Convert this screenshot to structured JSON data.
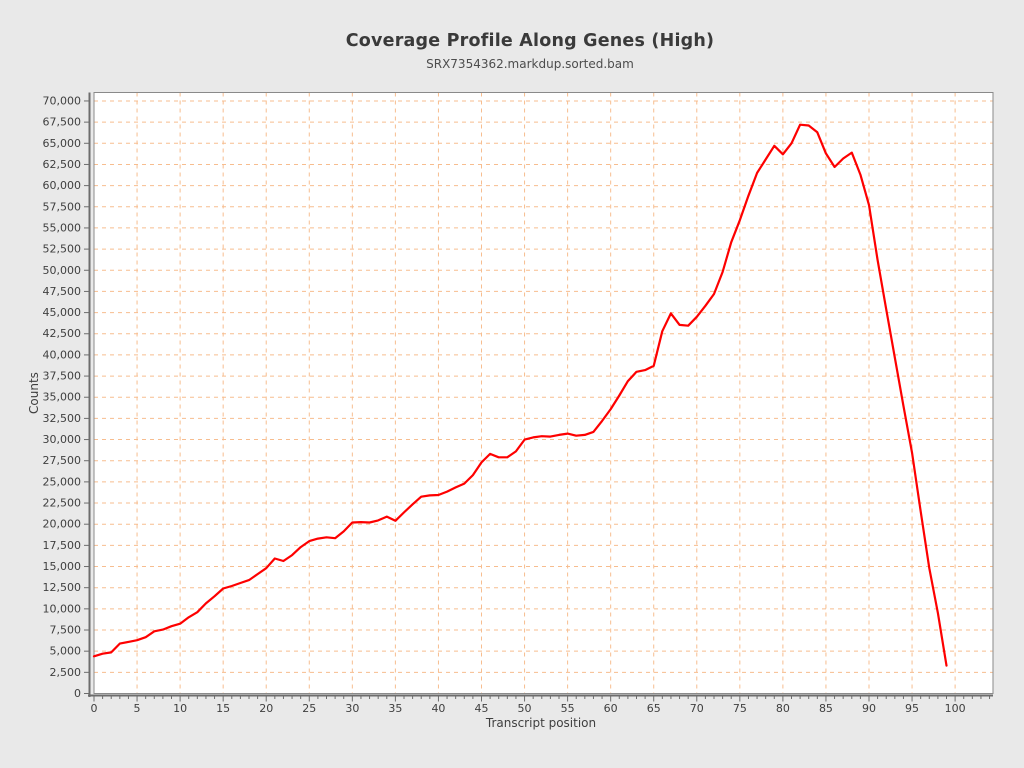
{
  "page": {
    "background": "#e9e9e9"
  },
  "chart_data": {
    "type": "line",
    "title": "Coverage Profile Along Genes (High)",
    "subtitle": "SRX7354362.markdup.sorted.bam",
    "xlabel": "Transcript position",
    "ylabel": "Counts",
    "x_start": 0,
    "x_step": 1,
    "values": [
      4400,
      4700,
      4850,
      5900,
      6100,
      6300,
      6650,
      7350,
      7550,
      7950,
      8250,
      9000,
      9600,
      10650,
      11500,
      12400,
      12700,
      13050,
      13400,
      14100,
      14800,
      15950,
      15650,
      16350,
      17300,
      18000,
      18300,
      18450,
      18350,
      19150,
      20200,
      20250,
      20200,
      20450,
      20900,
      20400,
      21400,
      22350,
      23250,
      23400,
      23450,
      23850,
      24350,
      24800,
      25800,
      27300,
      28300,
      27900,
      27900,
      28600,
      30000,
      30250,
      30400,
      30350,
      30550,
      30700,
      30450,
      30550,
      30900,
      32200,
      33600,
      35200,
      36900,
      38000,
      38200,
      38700,
      42800,
      44900,
      43550,
      43450,
      44500,
      45800,
      47200,
      49800,
      53300,
      55900,
      58800,
      61500,
      63100,
      64700,
      63700,
      65000,
      67200,
      67100,
      66300,
      63800,
      62200,
      63200,
      63900,
      61300,
      57700,
      51200,
      45400,
      39700,
      34000,
      28400,
      21500,
      14800,
      9500,
      3300
    ],
    "xlim": [
      0,
      104.4
    ],
    "ylim": [
      0,
      71000
    ],
    "x_ticks": [
      0,
      5,
      10,
      15,
      20,
      25,
      30,
      35,
      40,
      45,
      50,
      55,
      60,
      65,
      70,
      75,
      80,
      85,
      90,
      95,
      100
    ],
    "y_ticks": [
      0,
      2500,
      5000,
      7500,
      10000,
      12500,
      15000,
      17500,
      20000,
      22500,
      25000,
      27500,
      30000,
      32500,
      35000,
      37500,
      40000,
      42500,
      45000,
      47500,
      50000,
      52500,
      55000,
      57500,
      60000,
      62500,
      65000,
      67500,
      70000
    ],
    "grid": true,
    "grid_style": "dashed",
    "legend": false,
    "line_color": "#fe0000",
    "grid_color": "#f7bd8f",
    "plot_bg": "#ffffff",
    "axis_color": "#6d6d6d",
    "border_color": "#8a8a8a",
    "tick_text_color": "#3f3f3f"
  }
}
